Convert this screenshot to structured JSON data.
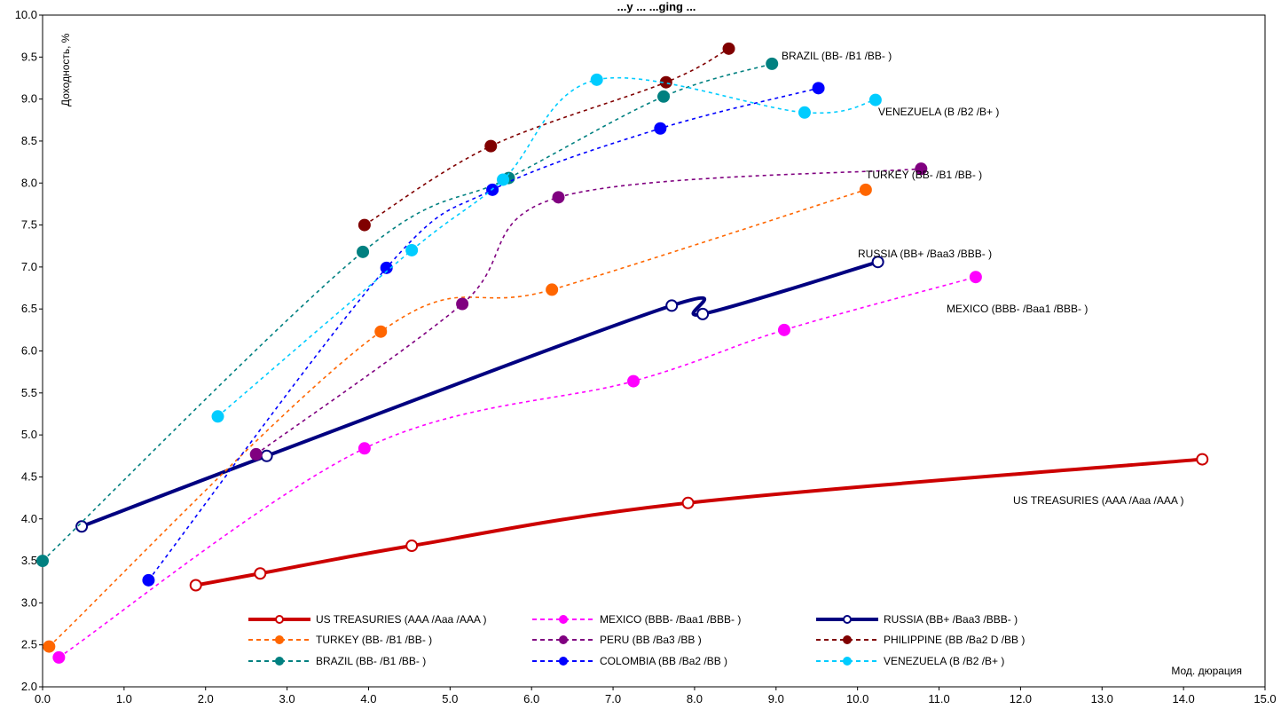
{
  "chart_data": {
    "type": "line",
    "title": "...y ... ...ging ...",
    "xlabel": "Мод. дюрация",
    "ylabel": "Доходность, %",
    "xlim": [
      0,
      15
    ],
    "ylim": [
      2,
      10
    ],
    "x_ticks": [
      "0.0",
      "1.0",
      "2.0",
      "3.0",
      "4.0",
      "5.0",
      "6.0",
      "7.0",
      "8.0",
      "9.0",
      "10.0",
      "11.0",
      "12.0",
      "13.0",
      "14.0",
      "15.0"
    ],
    "y_ticks": [
      "2.0",
      "2.5",
      "3.0",
      "3.5",
      "4.0",
      "4.5",
      "5.0",
      "5.5",
      "6.0",
      "6.5",
      "7.0",
      "7.5",
      "8.0",
      "8.5",
      "9.0",
      "9.5",
      "10.0"
    ],
    "grid": true,
    "legend_position": "bottom-center",
    "series": [
      {
        "name": "US TREASURIES (AAA /Aaa /AAA )",
        "color": "#cc0000",
        "style": "solid",
        "marker": "open-circle",
        "points": [
          [
            1.88,
            3.21
          ],
          [
            2.67,
            3.35
          ],
          [
            4.53,
            3.68
          ],
          [
            7.92,
            4.19
          ],
          [
            14.23,
            4.71
          ]
        ],
        "label": "US TREASURIES (AAA /Aaa /AAA )"
      },
      {
        "name": "MEXICO (BBB- /Baa1 /BBB- )",
        "color": "#ff00ff",
        "style": "dashed",
        "marker": "filled-circle",
        "points": [
          [
            0.2,
            2.35
          ],
          [
            3.95,
            4.84
          ],
          [
            7.25,
            5.64
          ],
          [
            9.1,
            6.25
          ],
          [
            11.45,
            6.88
          ]
        ],
        "label": "MEXICO (BBB- /Baa1 /BBB- )"
      },
      {
        "name": "RUSSIA (BB+ /Baa3 /BBB- )",
        "color": "#000080",
        "style": "solid",
        "marker": "open-circle",
        "points": [
          [
            0.48,
            3.91
          ],
          [
            2.75,
            4.75
          ],
          [
            7.72,
            6.54
          ],
          [
            8.1,
            6.44
          ],
          [
            10.25,
            7.06
          ]
        ],
        "label": "RUSSIA (BB+ /Baa3 /BBB- )"
      },
      {
        "name": "TURKEY (BB- /B1 /BB- )",
        "color": "#ff6600",
        "style": "dashed",
        "marker": "filled-circle",
        "points": [
          [
            0.08,
            2.48
          ],
          [
            4.15,
            6.23
          ],
          [
            6.25,
            6.73
          ],
          [
            10.1,
            7.92
          ]
        ],
        "label": "TURKEY (BB- /B1 /BB- )"
      },
      {
        "name": "PERU (BB /Ba3 /BB )",
        "color": "#800080",
        "style": "dashed",
        "marker": "filled-circle",
        "points": [
          [
            2.62,
            4.77
          ],
          [
            5.15,
            6.56
          ],
          [
            6.33,
            7.83
          ],
          [
            10.78,
            8.17
          ]
        ],
        "label": ""
      },
      {
        "name": "PHILIPPINE (BB /Ba2 D /BB )",
        "color": "#800000",
        "style": "dashed",
        "marker": "filled-circle",
        "points": [
          [
            3.95,
            7.5
          ],
          [
            5.5,
            8.44
          ],
          [
            7.65,
            9.2
          ],
          [
            8.42,
            9.6
          ]
        ],
        "label": ""
      },
      {
        "name": "BRAZIL (BB- /B1 /BB- )",
        "color": "#008080",
        "style": "dashed",
        "marker": "filled-circle",
        "points": [
          [
            0.0,
            3.5
          ],
          [
            3.93,
            7.18
          ],
          [
            5.72,
            8.06
          ],
          [
            7.62,
            9.03
          ],
          [
            8.95,
            9.42
          ]
        ],
        "label": "BRAZIL (BB- /B1 /BB- )"
      },
      {
        "name": "COLOMBIA (BB /Ba2 /BB )",
        "color": "#0000ff",
        "style": "dashed",
        "marker": "filled-circle",
        "points": [
          [
            1.3,
            3.27
          ],
          [
            4.22,
            6.99
          ],
          [
            5.52,
            7.92
          ],
          [
            7.58,
            8.65
          ],
          [
            9.52,
            9.13
          ]
        ],
        "label": ""
      },
      {
        "name": "VENEZUELA (B /B2 /B+ )",
        "color": "#00ccff",
        "style": "dashed",
        "marker": "filled-circle",
        "points": [
          [
            2.15,
            5.22
          ],
          [
            4.53,
            7.2
          ],
          [
            5.65,
            8.04
          ],
          [
            6.8,
            9.23
          ],
          [
            9.35,
            8.84
          ],
          [
            10.22,
            8.99
          ]
        ],
        "label": "VENEZUELA (B /B2 /B+ )"
      }
    ]
  },
  "labels": {
    "turkey_inline": "TURKEY (BB- /B1 /BB- )"
  }
}
